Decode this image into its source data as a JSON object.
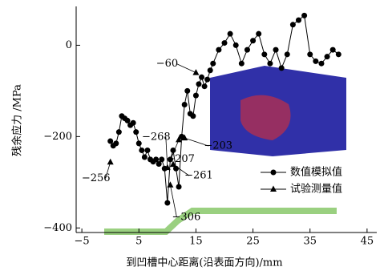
{
  "chart_data": {
    "type": "line",
    "xlabel": "到凹槽中心距离(沿表面方向)/mm",
    "ylabel": "残余应力 /MPa",
    "xlim": [
      -6,
      46
    ],
    "ylim": [
      -410,
      85
    ],
    "xticks": [
      {
        "value": -5,
        "label": "−5"
      },
      5,
      15,
      25,
      35,
      45
    ],
    "yticks": [
      0,
      {
        "value": -200,
        "label": "−200"
      },
      {
        "value": -400,
        "label": "−400"
      }
    ],
    "series": [
      {
        "name": "数值模拟值",
        "color": "#000000",
        "marker": "circle",
        "line": true,
        "x": [
          0,
          0.5,
          1,
          1.5,
          2,
          2.5,
          3,
          3.5,
          4,
          4.5,
          5,
          5.5,
          6,
          6.5,
          7,
          7.5,
          8,
          8.5,
          9,
          9.5,
          10,
          10.5,
          11,
          11.5,
          12,
          12.5,
          13,
          13.5,
          14,
          14.5,
          15,
          15.5,
          16,
          16.5,
          17,
          17.5,
          18,
          19,
          20,
          21,
          22,
          23,
          24,
          25,
          26,
          27,
          28,
          29,
          30,
          31,
          32,
          33,
          34,
          35,
          36,
          37,
          38,
          39,
          40
        ],
        "values": [
          -210,
          -220,
          -215,
          -190,
          -155,
          -160,
          -165,
          -175,
          -170,
          -190,
          -215,
          -230,
          -245,
          -230,
          -250,
          -255,
          -250,
          -260,
          -250,
          -270,
          -345,
          -250,
          -230,
          -270,
          -310,
          -200,
          -130,
          -100,
          -150,
          -155,
          -110,
          -85,
          -70,
          -90,
          -75,
          -55,
          -40,
          -10,
          5,
          25,
          0,
          -40,
          -10,
          10,
          25,
          -20,
          -40,
          -10,
          -50,
          -20,
          45,
          55,
          65,
          -20,
          -35,
          -40,
          -25,
          -10,
          -20
        ]
      },
      {
        "name": "试验测量值",
        "color": "#000000",
        "marker": "triangle",
        "line": false,
        "x": [
          0,
          10,
          10.5,
          11,
          12,
          13,
          15
        ],
        "values": [
          -256,
          -268,
          -306,
          -261,
          -207,
          -203,
          -60
        ],
        "value_labels": [
          "−256",
          "−268",
          "−306",
          "−261",
          "−207",
          "−203",
          "−60"
        ]
      }
    ]
  }
}
